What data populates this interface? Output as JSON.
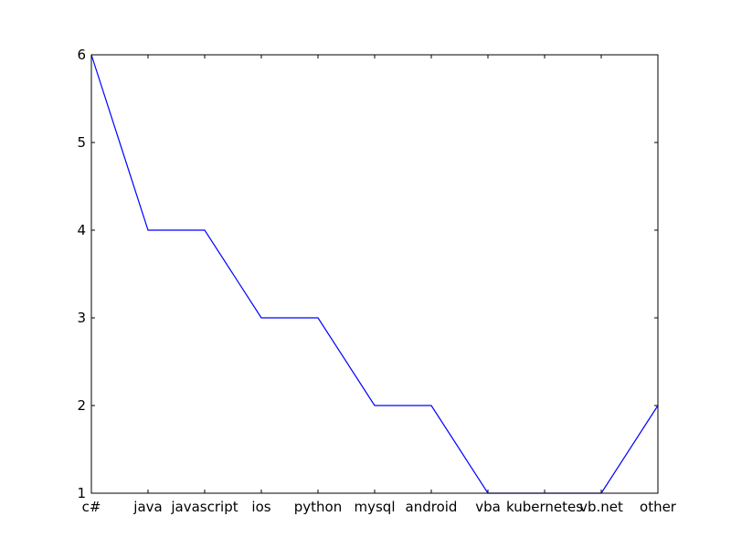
{
  "chart_data": {
    "type": "line",
    "title": "",
    "xlabel": "",
    "ylabel": "",
    "categories": [
      "c#",
      "java",
      "javascript",
      "ios",
      "python",
      "mysql",
      "android",
      "vba",
      "kubernetes",
      "vb.net",
      "other"
    ],
    "series": [
      {
        "values": [
          6,
          4,
          4,
          3,
          3,
          2,
          2,
          1,
          1,
          1,
          2
        ]
      }
    ],
    "ylim": [
      1,
      6
    ],
    "yticks": [
      1,
      2,
      3,
      4,
      5,
      6
    ],
    "grid": false,
    "colors": {
      "line": "#0000ff",
      "axes": "#000000"
    }
  }
}
